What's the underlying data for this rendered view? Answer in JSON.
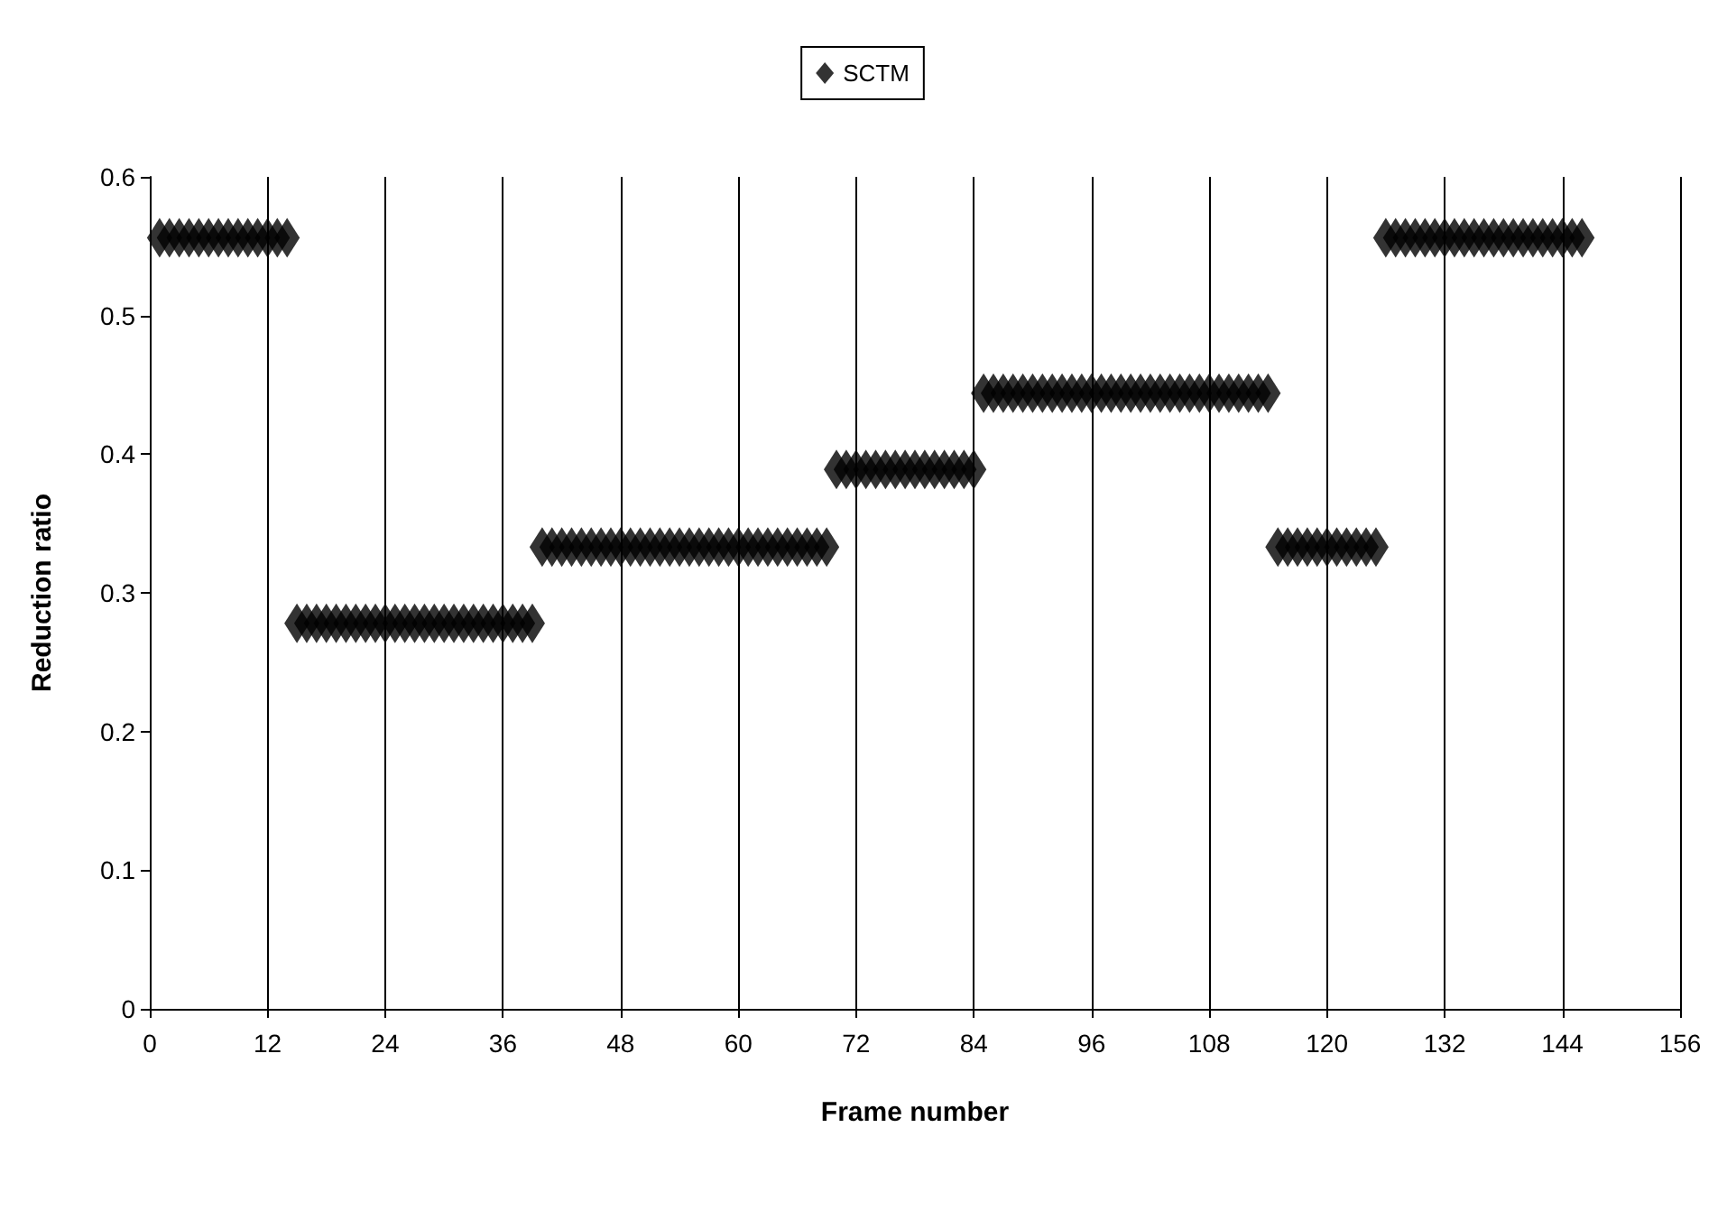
{
  "chart_data": {
    "type": "scatter",
    "xlabel": "Frame number",
    "ylabel": "Reduction ratio",
    "x": [
      1,
      2,
      3,
      4,
      5,
      6,
      7,
      8,
      9,
      10,
      11,
      12,
      13,
      14,
      15,
      16,
      17,
      18,
      19,
      20,
      21,
      22,
      23,
      24,
      25,
      26,
      27,
      28,
      29,
      30,
      31,
      32,
      33,
      34,
      35,
      36,
      37,
      38,
      39,
      40,
      41,
      42,
      43,
      44,
      45,
      46,
      47,
      48,
      49,
      50,
      51,
      52,
      53,
      54,
      55,
      56,
      57,
      58,
      59,
      60,
      61,
      62,
      63,
      64,
      65,
      66,
      67,
      68,
      69,
      70,
      71,
      72,
      73,
      74,
      75,
      76,
      77,
      78,
      79,
      80,
      81,
      82,
      83,
      84,
      85,
      86,
      87,
      88,
      89,
      90,
      91,
      92,
      93,
      94,
      95,
      96,
      97,
      98,
      99,
      100,
      101,
      102,
      103,
      104,
      105,
      106,
      107,
      108,
      109,
      110,
      111,
      112,
      113,
      114,
      115,
      116,
      117,
      118,
      119,
      120,
      121,
      122,
      123,
      124,
      125,
      126,
      127,
      128,
      129,
      130,
      131,
      132,
      133,
      134,
      135,
      136,
      137,
      138,
      139,
      140,
      141,
      142,
      143,
      144,
      145,
      146
    ],
    "series": [
      {
        "name": "SCTM",
        "color": "#000000",
        "values": [
          0.556,
          0.556,
          0.556,
          0.556,
          0.556,
          0.556,
          0.556,
          0.556,
          0.556,
          0.556,
          0.556,
          0.556,
          0.556,
          0.556,
          0.278,
          0.278,
          0.278,
          0.278,
          0.278,
          0.278,
          0.278,
          0.278,
          0.278,
          0.278,
          0.278,
          0.278,
          0.278,
          0.278,
          0.278,
          0.278,
          0.278,
          0.278,
          0.278,
          0.278,
          0.278,
          0.278,
          0.278,
          0.278,
          0.278,
          0.333,
          0.333,
          0.333,
          0.333,
          0.333,
          0.333,
          0.333,
          0.333,
          0.333,
          0.333,
          0.333,
          0.333,
          0.333,
          0.333,
          0.333,
          0.333,
          0.333,
          0.333,
          0.333,
          0.333,
          0.333,
          0.333,
          0.333,
          0.333,
          0.333,
          0.333,
          0.333,
          0.333,
          0.333,
          0.333,
          0.389,
          0.389,
          0.389,
          0.389,
          0.389,
          0.389,
          0.389,
          0.389,
          0.389,
          0.389,
          0.389,
          0.389,
          0.389,
          0.389,
          0.389,
          0.444,
          0.444,
          0.444,
          0.444,
          0.444,
          0.444,
          0.444,
          0.444,
          0.444,
          0.444,
          0.444,
          0.444,
          0.444,
          0.444,
          0.444,
          0.444,
          0.444,
          0.444,
          0.444,
          0.444,
          0.444,
          0.444,
          0.444,
          0.444,
          0.444,
          0.444,
          0.444,
          0.444,
          0.444,
          0.444,
          0.333,
          0.333,
          0.333,
          0.333,
          0.333,
          0.333,
          0.333,
          0.333,
          0.333,
          0.333,
          0.333,
          0.556,
          0.556,
          0.556,
          0.556,
          0.556,
          0.556,
          0.556,
          0.556,
          0.556,
          0.556,
          0.556,
          0.556,
          0.556,
          0.556,
          0.556,
          0.556,
          0.556,
          0.556,
          0.556,
          0.556,
          0.556
        ]
      }
    ],
    "xlim": [
      0,
      156
    ],
    "xticks": [
      0,
      12,
      24,
      36,
      48,
      60,
      72,
      84,
      96,
      108,
      120,
      132,
      144,
      156
    ],
    "ylim": [
      0,
      0.6
    ],
    "yticks": [
      0,
      0.1,
      0.2,
      0.3,
      0.4,
      0.5,
      0.6
    ],
    "grid": "x",
    "legend": "top",
    "marker": "diamond"
  }
}
